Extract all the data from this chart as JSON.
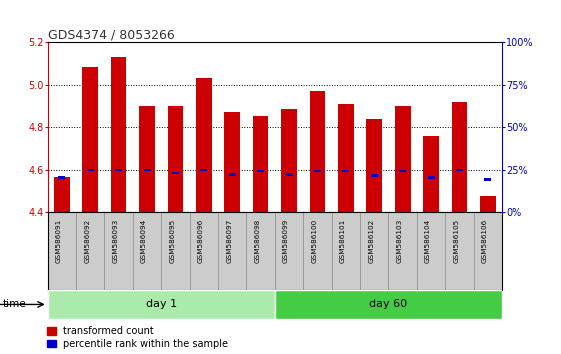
{
  "title": "GDS4374 / 8053266",
  "samples": [
    "GSM586091",
    "GSM586092",
    "GSM586093",
    "GSM586094",
    "GSM586095",
    "GSM586096",
    "GSM586097",
    "GSM586098",
    "GSM586099",
    "GSM586100",
    "GSM586101",
    "GSM586102",
    "GSM586103",
    "GSM586104",
    "GSM586105",
    "GSM586106"
  ],
  "red_values": [
    4.565,
    5.085,
    5.13,
    4.9,
    4.9,
    5.035,
    4.875,
    4.855,
    4.885,
    4.97,
    4.91,
    4.84,
    4.9,
    4.76,
    4.92,
    4.475
  ],
  "blue_values": [
    4.565,
    4.6,
    4.6,
    4.6,
    4.585,
    4.6,
    4.578,
    4.595,
    4.58,
    4.595,
    4.595,
    4.575,
    4.595,
    4.565,
    4.6,
    4.555
  ],
  "day1_count": 8,
  "day60_count": 8,
  "ylim": [
    4.4,
    5.2
  ],
  "y_left_ticks": [
    4.4,
    4.6,
    4.8,
    5.0,
    5.2
  ],
  "y_right_ticks": [
    0,
    25,
    50,
    75,
    100
  ],
  "bar_color": "#cc0000",
  "blue_color": "#0000cc",
  "bar_bottom": 4.4,
  "day1_color": "#aaeaaa",
  "day60_color": "#44cc44",
  "tick_label_bg": "#cccccc",
  "grid_yticks": [
    4.6,
    4.8,
    5.0
  ]
}
